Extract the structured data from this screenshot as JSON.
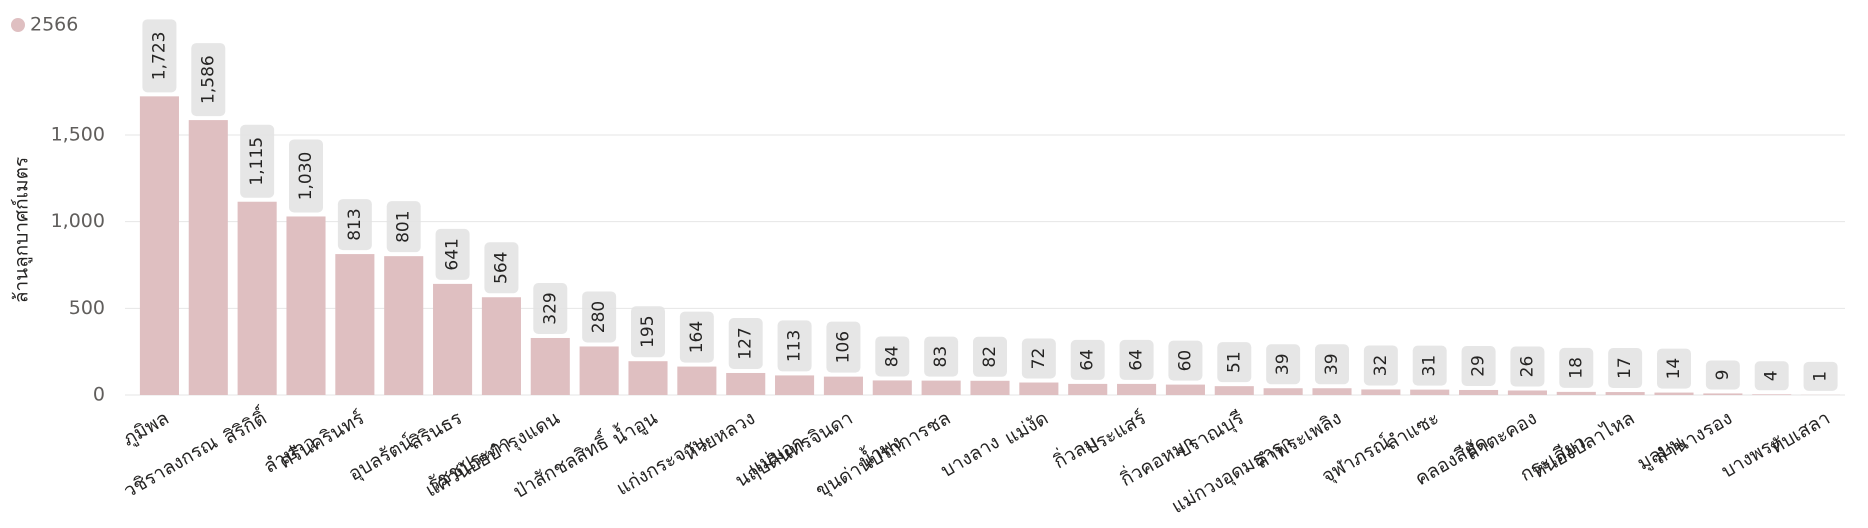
{
  "chart_data": {
    "type": "bar",
    "legend": "2566",
    "y_label": "ล้านลูกบาศก์เมตร",
    "color": "#dfbfc1",
    "categories": [
      "ภูมิพล",
      "วชิราลงกรณ",
      "สิริกิติ์",
      "ลำปาว",
      "ศรีนครินทร์",
      "อุบลรัตน์",
      "สิรินธร",
      "รัชชประภา",
      "แควน้อยบำรุงแดน",
      "ป่าสักชลสิทธิ์",
      "น้ำอูน",
      "แก่งกระจาน",
      "ห้วยหลวง",
      "แม่มอก",
      "นฤบดินทรจินดา",
      "น้ำพุง",
      "ขุนด่านปราการชล",
      "บางลาง",
      "แม่งัด",
      "กิ่วลม",
      "ประแสร์",
      "กิ่วคอหมา",
      "ปราณบุรี",
      "แม่กวงอุดมธารา",
      "ลำพระเพลิง",
      "จุฬาภรณ์",
      "ลำแซะ",
      "คลองสียัด",
      "ลำตะคอง",
      "กระเสียว",
      "หนองปลาไหล",
      "มูลบน",
      "ลำนางรอง",
      "บางพระ",
      "ทับเสลา"
    ],
    "values": [
      1723,
      1586,
      1115,
      1030,
      813,
      801,
      641,
      564,
      329,
      280,
      195,
      164,
      127,
      113,
      106,
      84,
      83,
      82,
      72,
      64,
      64,
      60,
      51,
      39,
      39,
      32,
      31,
      29,
      26,
      18,
      17,
      14,
      9,
      4,
      1
    ],
    "value_labels": [
      "1,723",
      "1,586",
      "1,115",
      "1,030",
      "813",
      "801",
      "641",
      "564",
      "329",
      "280",
      "195",
      "164",
      "127",
      "113",
      "106",
      "84",
      "83",
      "82",
      "72",
      "64",
      "64",
      "60",
      "51",
      "39",
      "39",
      "32",
      "31",
      "29",
      "26",
      "18",
      "17",
      "14",
      "9",
      "4",
      "1"
    ],
    "ylim": [
      0,
      1800
    ],
    "yticks": [
      0,
      500,
      {
        "value": 1000,
        "label": "1,000"
      },
      {
        "value": 1500,
        "label": "1,500"
      }
    ],
    "grid": true
  }
}
